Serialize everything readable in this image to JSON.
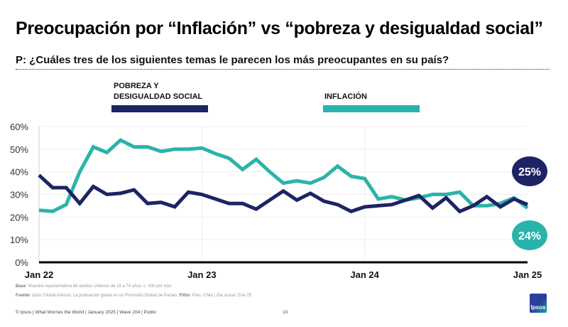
{
  "title": "Preocupación por “Inflación” vs “pobreza y desigualdad social”",
  "question": "P: ¿Cuáles tres de los siguientes temas le parecen los más preocupantes en su país?",
  "notes": {
    "base_label": "Base",
    "base_text": ": Muestra representativa de adultos chilenos de 18 a 74 años. c. 500 por mes",
    "source_label": "Fuente",
    "source_text": ": Ipsos Global Advisor. La puntuación global es un Promedio Global de Países.",
    "filter_label": "Filtro",
    "filter_text": ": País: Chile | Ola actual: Ene 25"
  },
  "footer": "© Ipsos | What Worries the World | January 2025 | Wave 204 | Public",
  "page_number": "10",
  "logo_text": "Ipsos",
  "chart_data": {
    "type": "line",
    "ylim": [
      0,
      60
    ],
    "yticks": [
      "0%",
      "10%",
      "20%",
      "30%",
      "40%",
      "50%",
      "60%"
    ],
    "ytick_values": [
      0,
      10,
      20,
      30,
      40,
      50,
      60
    ],
    "xtick_labels": [
      "Jan 22",
      "Jan 23",
      "Jan 24",
      "Jan 25"
    ],
    "grid": true,
    "legend_placement": "top",
    "series": [
      {
        "name": "POBREZA Y DESIGUALDAD SOCIAL",
        "color": "#1c2463",
        "end_label": "25%",
        "values": [
          38.5,
          33,
          33,
          26,
          33.5,
          30,
          30.5,
          32,
          26,
          26.5,
          24.5,
          31,
          30,
          28,
          26,
          26,
          23.5,
          27.5,
          31.5,
          27.5,
          30.5,
          27,
          25.5,
          22.5,
          24.5,
          25,
          25.5,
          27.5,
          29.5,
          24,
          28.5,
          22.5,
          25,
          29,
          24.5,
          28,
          25.5
        ]
      },
      {
        "name": "INFLACIÓN",
        "color": "#2ab3aa",
        "end_label": "24%",
        "values": [
          23,
          22.5,
          25.5,
          40,
          51,
          48.5,
          54,
          51,
          51,
          49,
          50,
          50,
          50.5,
          48,
          46,
          41,
          45.5,
          40,
          35,
          36,
          35,
          37.5,
          42.5,
          38,
          37,
          28,
          29,
          27.5,
          28.5,
          30,
          30,
          31,
          25,
          25,
          26,
          28.5,
          24
        ]
      }
    ]
  }
}
